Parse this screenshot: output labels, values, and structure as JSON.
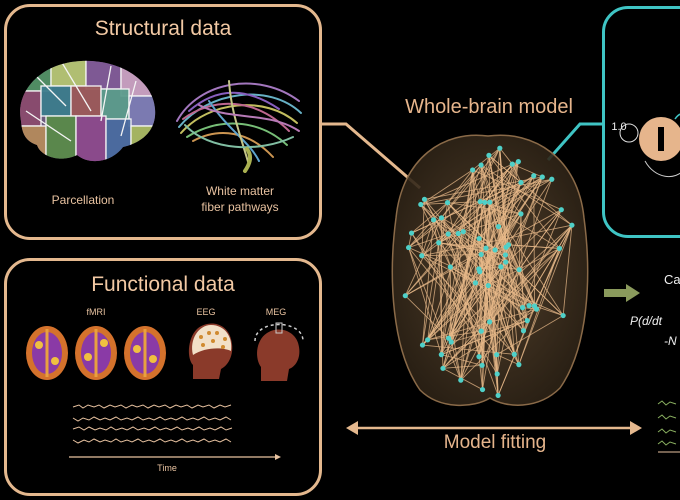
{
  "structural": {
    "title": "Structural data",
    "parcellation_label": "Parcellation",
    "white_matter_label": "White matter\nfiber pathways"
  },
  "functional": {
    "title": "Functional data",
    "fmri_label": "fMRI",
    "eeg_label": "EEG",
    "meg_label": "MEG",
    "time_label": "Time"
  },
  "model": {
    "title": "Whole-brain model",
    "fitting_label": "Model fitting"
  },
  "node_panel": {
    "weight_label": "1.0"
  },
  "right_side": {
    "ca_text": "Ca",
    "p_text": "P(d/dt",
    "n_text": "-N"
  },
  "colors": {
    "panel_border": "#e4b88e",
    "node_panel_border": "#3fc4c4",
    "node_color": "#4fd0c8",
    "edge_color": "#e8b98a"
  }
}
